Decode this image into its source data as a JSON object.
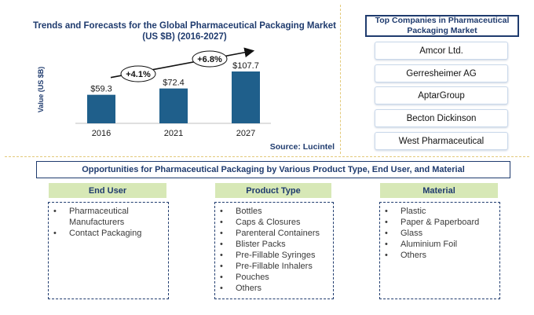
{
  "chart_data": {
    "type": "bar",
    "title": "Trends and Forecasts for the Global Pharmaceutical Packaging Market (US $B) (2016-2027)",
    "ylabel": "Value (US $B)",
    "xlabel": "",
    "categories": [
      "2016",
      "2021",
      "2027"
    ],
    "values": [
      59.3,
      72.4,
      107.7
    ],
    "value_labels": [
      "$59.3",
      "$72.4",
      "$107.7"
    ],
    "growth_annotations": [
      "+4.1%",
      "+6.8%"
    ],
    "source": "Source: Lucintel",
    "bar_color": "#1f5f8b",
    "grid": false,
    "legend": "none"
  },
  "companies": {
    "title": "Top Companies in Pharmaceutical Packaging Market",
    "items": [
      "Amcor Ltd.",
      "Gerresheimer AG",
      "AptarGroup",
      "Becton Dickinson",
      "West Pharmaceutical"
    ]
  },
  "opportunities": {
    "title": "Opportunities for Pharmaceutical Packaging by Various Product Type, End User, and Material",
    "end_user": {
      "heading": "End User",
      "items": [
        "Pharmaceutical Manufacturers",
        "Contact Packaging"
      ]
    },
    "product_type": {
      "heading": "Product Type",
      "items": [
        "Bottles",
        "Caps & Closures",
        "Parenteral Containers",
        "Blister Packs",
        "Pre-Fillable Syringes",
        "Pre-Fillable Inhalers",
        "Pouches",
        "Others"
      ]
    },
    "material": {
      "heading": "Material",
      "items": [
        "Plastic",
        "Paper & Paperboard",
        "Glass",
        "Aluminium Foil",
        "Others"
      ]
    }
  },
  "colors": {
    "accent": "#1f3b6e",
    "header_fill": "#d7e8b6",
    "divider": "#e3c97a"
  }
}
